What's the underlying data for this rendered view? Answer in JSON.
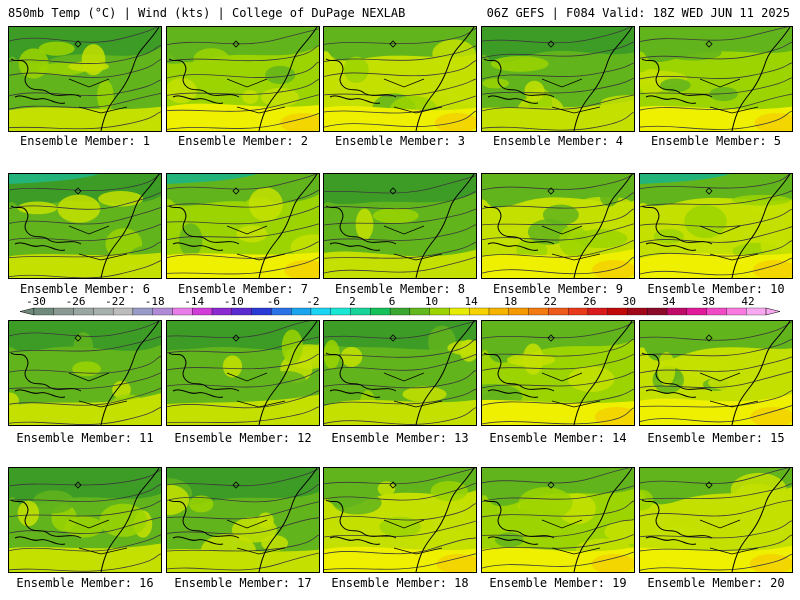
{
  "header": {
    "left": "850mb Temp (°C) | Wind (kts) | College of DuPage NEXLAB",
    "right": "06Z GEFS | F084 Valid: 18Z WED JUN 11 2025"
  },
  "colors": {
    "dark_green": "#3c9c26",
    "green": "#62b41c",
    "light_green": "#9bd400",
    "yellow_green": "#c4e000",
    "yellow": "#eef000",
    "gold": "#f6c400",
    "teal": "#22b47a",
    "contour": "#3a3a3a",
    "coast": "#000000"
  },
  "members": [
    {
      "label": "Ensemble Member: 1",
      "palette": "green"
    },
    {
      "label": "Ensemble Member: 2",
      "palette": "mixed"
    },
    {
      "label": "Ensemble Member: 3",
      "palette": "yellow"
    },
    {
      "label": "Ensemble Member: 4",
      "palette": "green"
    },
    {
      "label": "Ensemble Member: 5",
      "palette": "mixed"
    },
    {
      "label": "Ensemble Member: 6",
      "palette": "green"
    },
    {
      "label": "Ensemble Member: 7",
      "palette": "mixed"
    },
    {
      "label": "Ensemble Member: 8",
      "palette": "green"
    },
    {
      "label": "Ensemble Member: 9",
      "palette": "yellow"
    },
    {
      "label": "Ensemble Member: 10",
      "palette": "yellow"
    },
    {
      "label": "Ensemble Member: 11",
      "palette": "green"
    },
    {
      "label": "Ensemble Member: 12",
      "palette": "green"
    },
    {
      "label": "Ensemble Member: 13",
      "palette": "green"
    },
    {
      "label": "Ensemble Member: 14",
      "palette": "mixed"
    },
    {
      "label": "Ensemble Member: 15",
      "palette": "yellow"
    },
    {
      "label": "Ensemble Member: 16",
      "palette": "green"
    },
    {
      "label": "Ensemble Member: 17",
      "palette": "green"
    },
    {
      "label": "Ensemble Member: 18",
      "palette": "yellow"
    },
    {
      "label": "Ensemble Member: 19",
      "palette": "mixed"
    },
    {
      "label": "Ensemble Member: 20",
      "palette": "yellow"
    }
  ],
  "colorbar": {
    "labels": [
      "-30",
      "-26",
      "-22",
      "-18",
      "-14",
      "-10",
      "-6",
      "-2",
      "2",
      "6",
      "10",
      "14",
      "18",
      "22",
      "26",
      "30",
      "34",
      "38",
      "42"
    ],
    "colors": [
      "#6f8a7a",
      "#8a9a92",
      "#9aa6a2",
      "#a8b0ae",
      "#bcbcbc",
      "#9a9ac6",
      "#b08ad6",
      "#e87ce8",
      "#d23cd8",
      "#8a2ad0",
      "#5a2ad0",
      "#2a3ad6",
      "#2a72e6",
      "#1aa4ee",
      "#1ad4f2",
      "#1ae6d4",
      "#18d49a",
      "#16c05a",
      "#3aa830",
      "#62b81c",
      "#9bd400",
      "#e6ec00",
      "#f6d200",
      "#f6b400",
      "#f69800",
      "#f27a10",
      "#ee5a1a",
      "#e83a1a",
      "#d81a1a",
      "#c00a0a",
      "#a0081a",
      "#8a0a2a",
      "#c00a6a",
      "#e01a9a",
      "#f04ac4",
      "#f87ae0",
      "#f8a8f0"
    ]
  }
}
